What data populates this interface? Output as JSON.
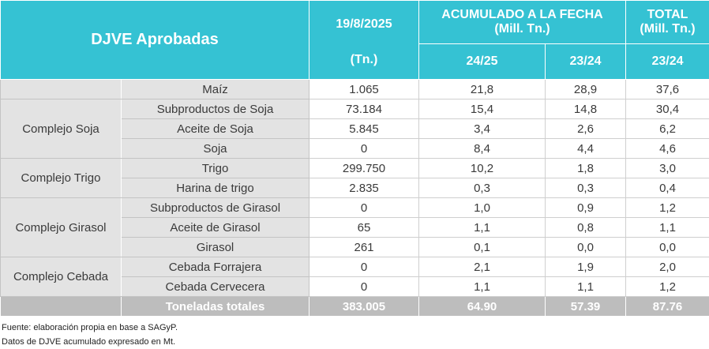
{
  "header": {
    "title": "DJVE Aprobadas",
    "date": "19/8/2025",
    "date_unit": "(Tn.)",
    "accum_title": "ACUMULADO A LA FECHA",
    "accum_unit": "(Mill. Tn.)",
    "accum_cols": [
      "24/25",
      "23/24"
    ],
    "total_title": "TOTAL",
    "total_unit": "(Mill. Tn.)",
    "total_col": "23/24"
  },
  "table": {
    "groups": [
      {
        "rows": [
          {
            "product": "Maíz",
            "cells": [
              "1.065",
              "21,8",
              "28,9",
              "37,6"
            ]
          }
        ]
      },
      {
        "name": "Complejo Soja",
        "rows": [
          {
            "product": "Subproductos de Soja",
            "cells": [
              "73.184",
              "15,4",
              "14,8",
              "30,4"
            ]
          },
          {
            "product": "Aceite de Soja",
            "cells": [
              "5.845",
              "3,4",
              "2,6",
              "6,2"
            ]
          },
          {
            "product": "Soja",
            "cells": [
              "0",
              "8,4",
              "4,4",
              "4,6"
            ]
          }
        ]
      },
      {
        "name": "Complejo Trigo",
        "rows": [
          {
            "product": "Trigo",
            "cells": [
              "299.750",
              "10,2",
              "1,8",
              "3,0"
            ]
          },
          {
            "product": "Harina de trigo",
            "cells": [
              "2.835",
              "0,3",
              "0,3",
              "0,4"
            ]
          }
        ]
      },
      {
        "name": "Complejo Girasol",
        "rows": [
          {
            "product": "Subproductos de Girasol",
            "cells": [
              "0",
              "1,0",
              "0,9",
              "1,2"
            ]
          },
          {
            "product": "Aceite de Girasol",
            "cells": [
              "65",
              "1,1",
              "0,8",
              "1,1"
            ]
          },
          {
            "product": "Girasol",
            "cells": [
              "261",
              "0,1",
              "0,0",
              "0,0"
            ]
          }
        ]
      },
      {
        "name": "Complejo Cebada",
        "rows": [
          {
            "product": "Cebada Forrajera",
            "cells": [
              "0",
              "2,1",
              "1,9",
              "2,0"
            ]
          },
          {
            "product": "Cebada Cervecera",
            "cells": [
              "0",
              "1,1",
              "1,1",
              "1,2"
            ]
          }
        ]
      }
    ],
    "total": {
      "label": "Toneladas totales",
      "cells": [
        "383.005",
        "64.90",
        "57.39",
        "87.76"
      ]
    }
  },
  "notes": [
    "Fuente: elaboración propia en base a SAGyP.",
    "Datos de DJVE acumulado expresado en Mt."
  ]
}
